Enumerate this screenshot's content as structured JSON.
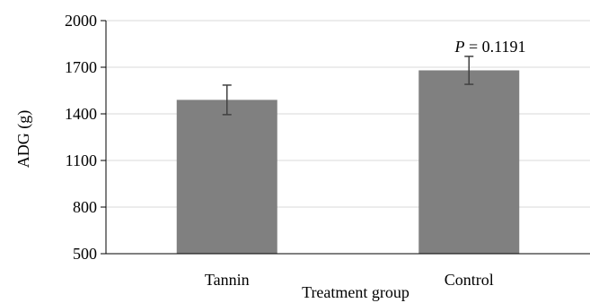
{
  "chart_data": {
    "type": "bar",
    "categories": [
      "Tannin",
      "Control"
    ],
    "values": [
      1490,
      1680
    ],
    "error": [
      95,
      90
    ],
    "xlabel": "Treatment group",
    "ylabel": "ADG (g)",
    "ylim": [
      500,
      2000
    ],
    "yticks": [
      "500",
      "800",
      "1100",
      "1400",
      "1700",
      "2000"
    ],
    "ytick_values": [
      500,
      800,
      1100,
      1400,
      1700,
      2000
    ],
    "annotation": {
      "italic": "P",
      "rest": " = 0.1191"
    },
    "grid": true,
    "colors": {
      "bar": "#808080",
      "grid": "#d9d9d9",
      "axis": "#000000",
      "error": "#404040"
    }
  }
}
